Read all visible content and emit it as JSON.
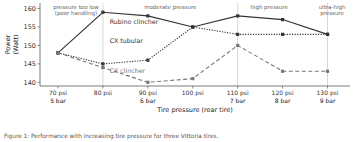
{
  "chart_data": {
    "type": "line",
    "xlabel": "Tire pressure (rear tire)",
    "ylabel": "Power\n(Watt)",
    "caption": "Figure 1: Performance with increasing tire pressure for three Vittoria tires.",
    "x": [
      70,
      80,
      90,
      100,
      110,
      120,
      130
    ],
    "series": [
      {
        "name": "Rubino clincher",
        "color": "#333333",
        "line_style": "solid",
        "marker": "square",
        "values": [
          148,
          159,
          158,
          155,
          158,
          157,
          153
        ],
        "label_x": 81.5,
        "label_y": 156.5
      },
      {
        "name": "CX tubular",
        "color": "#333333",
        "line_style": "dotted",
        "marker": "square",
        "values": [
          148,
          145,
          146,
          155,
          153,
          153,
          153
        ],
        "label_x": 81.5,
        "label_y": 151.2
      },
      {
        "name": "CX clincher",
        "color": "#777777",
        "line_style": "dashed",
        "marker": "square",
        "values": [
          148,
          144,
          140,
          141,
          150,
          143,
          143
        ],
        "label_x": 81.5,
        "label_y": 143.2
      }
    ],
    "xlim": [
      66,
      135
    ],
    "xticks": [
      {
        "value": 70,
        "label": "70 psi"
      },
      {
        "value": 80,
        "label": "80 psi"
      },
      {
        "value": 90,
        "label": "90 psi"
      },
      {
        "value": 100,
        "label": "100 psi"
      },
      {
        "value": 110,
        "label": "110 psi"
      },
      {
        "value": 120,
        "label": "120 psi"
      },
      {
        "value": 130,
        "label": "130 psi"
      }
    ],
    "x_sublabels": [
      {
        "value": 70,
        "label": "5 bar"
      },
      {
        "value": 90,
        "label": "6 bar"
      },
      {
        "value": 110,
        "label": "7 bar"
      },
      {
        "value": 120,
        "label": "8 bar"
      },
      {
        "value": 130,
        "label": "9 bar"
      }
    ],
    "ylim": [
      139,
      161.5
    ],
    "yticks": [
      140,
      145,
      150,
      155,
      160
    ],
    "vlines": [
      80,
      110,
      130
    ],
    "annotations": [
      {
        "text": "pressure too low\n(poor handling)",
        "x": 74,
        "y": 161.2
      },
      {
        "text": "moderate pressure",
        "x": 95,
        "y": 161.2
      },
      {
        "text": "high pressure",
        "x": 117,
        "y": 161.2
      },
      {
        "text": "ultra-high\npressure",
        "x": 131,
        "y": 161.2
      }
    ],
    "grid": false
  }
}
